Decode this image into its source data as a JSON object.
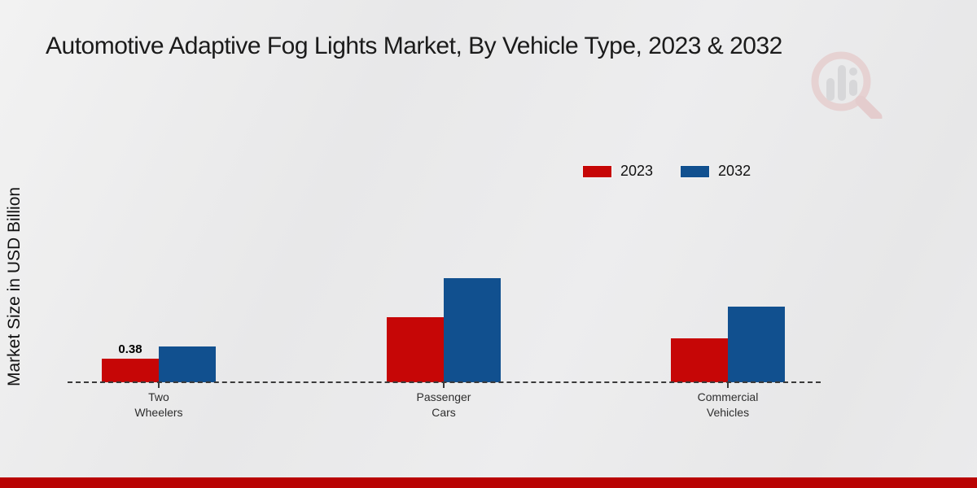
{
  "title": "Automotive Adaptive Fog Lights Market, By Vehicle Type, 2023 & 2032",
  "y_axis_label": "Market Size in USD Billion",
  "legend": [
    {
      "label": "2023",
      "color": "#c60606"
    },
    {
      "label": "2032",
      "color": "#11508f"
    }
  ],
  "colors": {
    "bar_2023": "#c60606",
    "bar_2032": "#11508f",
    "footer_accent": "#b90303",
    "baseline": "#3a3a3a"
  },
  "chart_data": {
    "type": "bar",
    "title": "Automotive Adaptive Fog Lights Market, By Vehicle Type, 2023 & 2032",
    "ylabel": "Market Size in USD Billion",
    "categories": [
      "Two Wheelers",
      "Passenger Cars",
      "Commercial Vehicles"
    ],
    "series": [
      {
        "name": "2023",
        "color": "#c60606",
        "values": [
          0.38,
          1.05,
          0.71
        ],
        "data_labels": [
          "0.38",
          "",
          ""
        ]
      },
      {
        "name": "2032",
        "color": "#11508f",
        "values": [
          0.58,
          1.69,
          1.23
        ],
        "data_labels": [
          "",
          "",
          ""
        ]
      }
    ],
    "ylim": [
      0,
      2.0
    ],
    "y_axis_ticks_visible": false,
    "grid": false,
    "baseline_style": "dashed",
    "legend_position": "top-right"
  }
}
